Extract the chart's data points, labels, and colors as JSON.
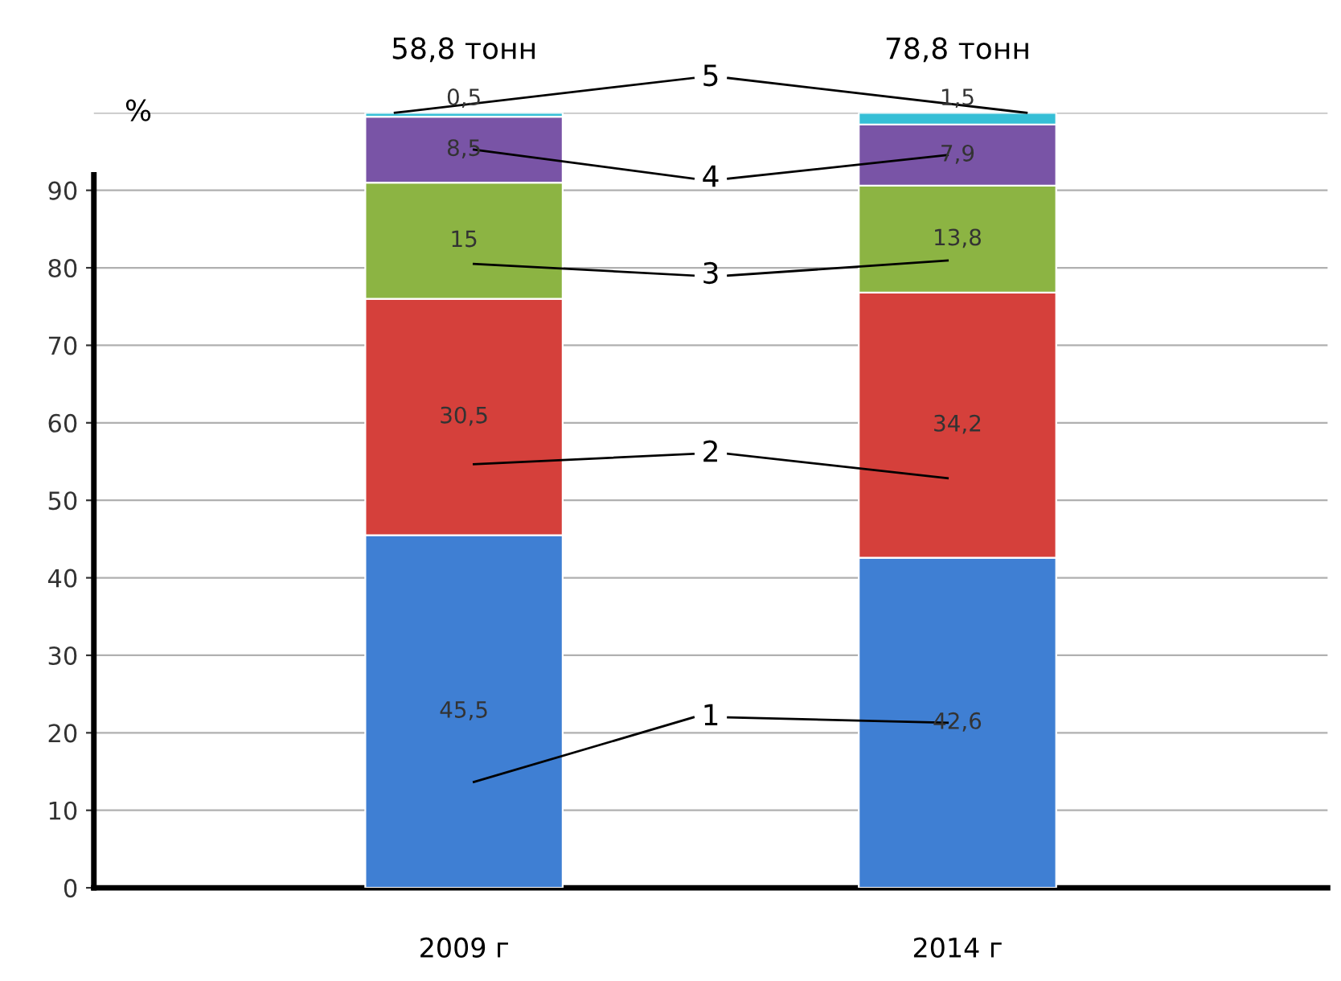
{
  "chart_data": {
    "type": "bar",
    "stacked": true,
    "ylabel": "%",
    "categories": [
      "2009 г",
      "2014 г"
    ],
    "series": [
      {
        "name": "1",
        "color": "#3f7fd3",
        "values": [
          45.5,
          42.6
        ],
        "value_labels": [
          "45,5",
          "42,6"
        ]
      },
      {
        "name": "2",
        "color": "#d5403b",
        "values": [
          30.5,
          34.2
        ],
        "value_labels": [
          "30,5",
          "34,2"
        ]
      },
      {
        "name": "3",
        "color": "#8cb443",
        "values": [
          15,
          13.8
        ],
        "value_labels": [
          "15",
          "13,8"
        ]
      },
      {
        "name": "4",
        "color": "#7954a6",
        "values": [
          8.5,
          7.9
        ],
        "value_labels": [
          "8,5",
          "7,9"
        ]
      },
      {
        "name": "5",
        "color": "#35bfd6",
        "values": [
          0.5,
          1.5
        ],
        "value_labels": [
          "0,5",
          "1,5"
        ]
      }
    ],
    "annotations": [
      "58,8 тонн",
      "78,8 тонн"
    ],
    "ylim": [
      0,
      100
    ],
    "yticks": [
      0,
      10,
      20,
      30,
      40,
      50,
      60,
      70,
      80,
      90,
      {
        "value": 100,
        "label": null
      }
    ],
    "grid": "y",
    "legend": false
  }
}
